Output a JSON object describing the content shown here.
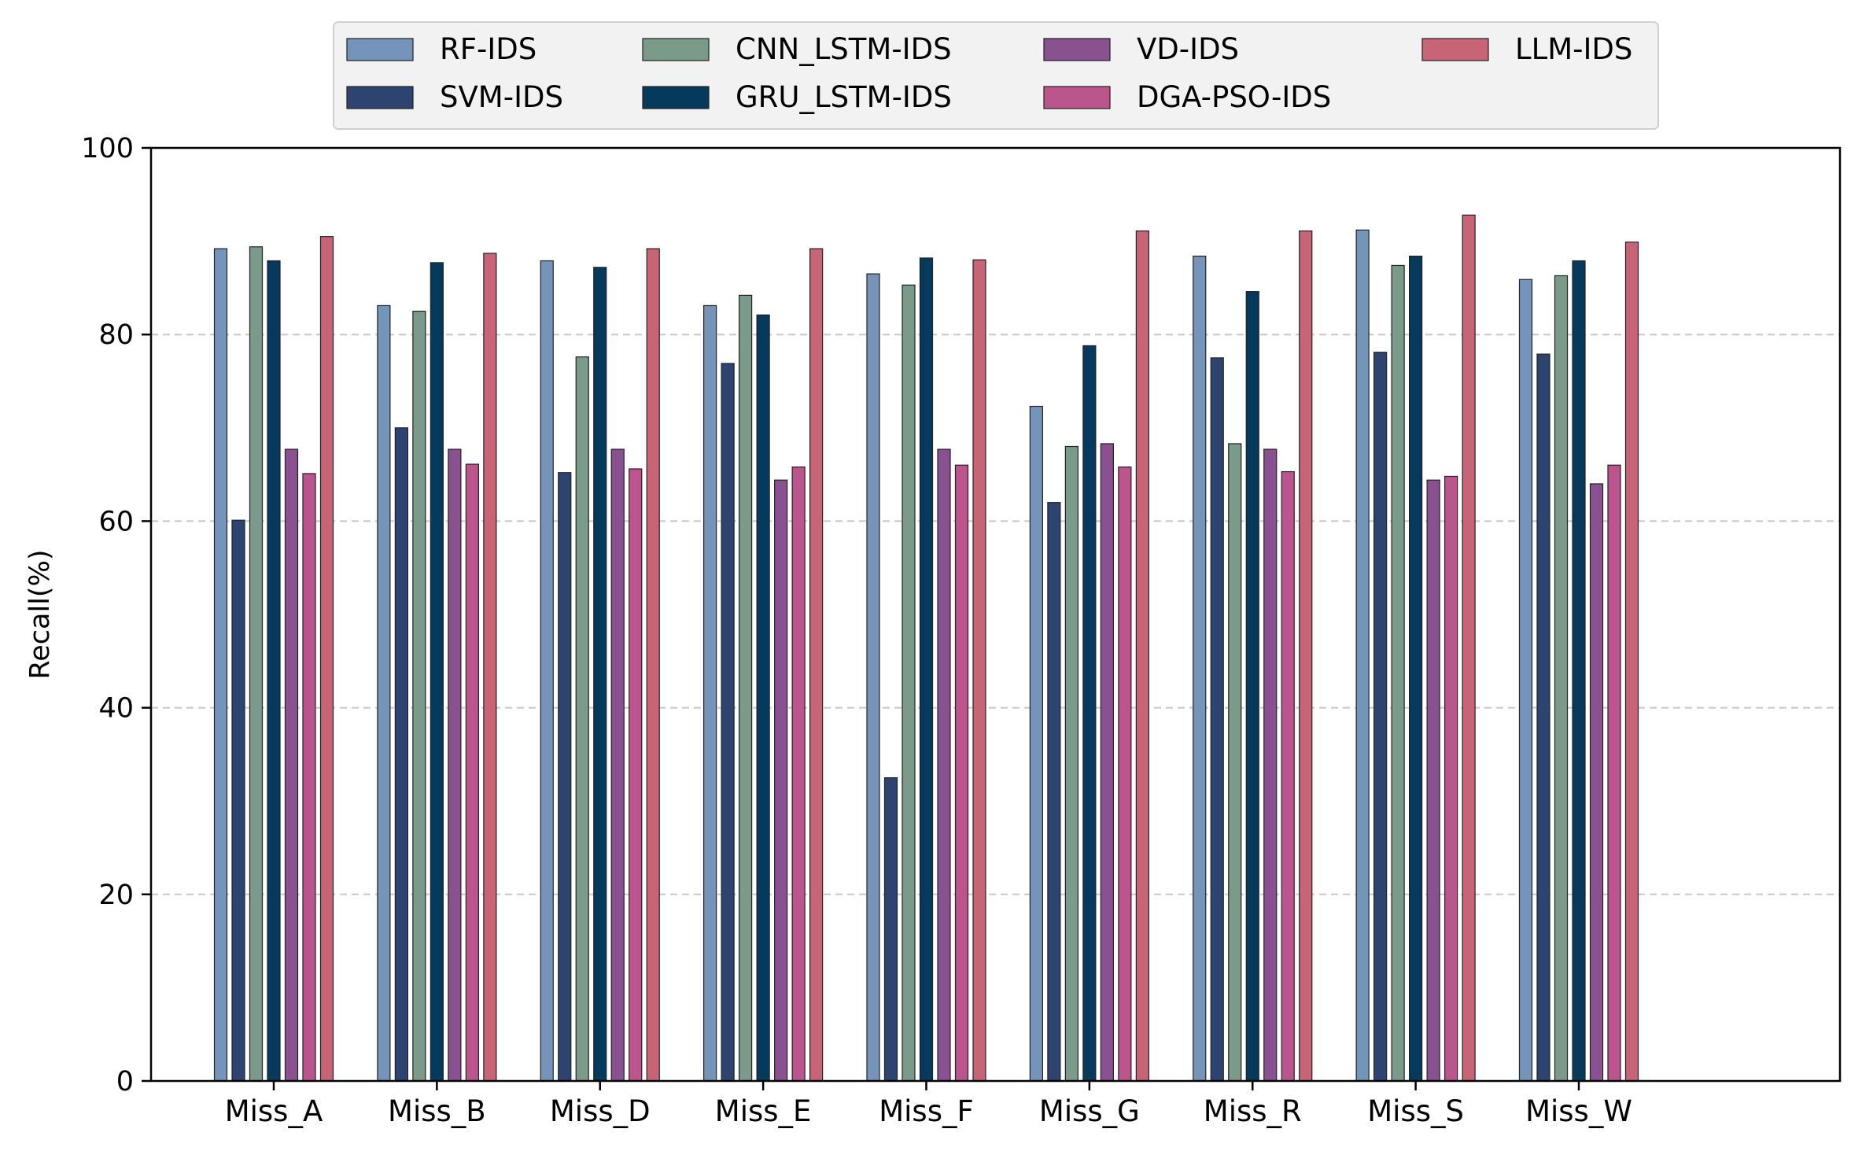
{
  "chart_data": {
    "type": "bar",
    "title": "",
    "xlabel": "",
    "ylabel": "Recall(%)",
    "ylim": [
      0,
      100
    ],
    "yticks": [
      0,
      20,
      40,
      60,
      80,
      100
    ],
    "grid": "y-dashed",
    "legend_position": "top-center",
    "categories": [
      "Miss_A",
      "Miss_B",
      "Miss_D",
      "Miss_E",
      "Miss_F",
      "Miss_G",
      "Miss_R",
      "Miss_S",
      "Miss_W"
    ],
    "series": [
      {
        "name": "RF-IDS",
        "color": "#7594b9",
        "values": [
          89.2,
          83.1,
          87.9,
          83.1,
          86.5,
          72.3,
          88.4,
          91.2,
          85.9
        ]
      },
      {
        "name": "SVM-IDS",
        "color": "#2e4470",
        "values": [
          60.1,
          70.0,
          65.2,
          76.9,
          32.5,
          62.0,
          77.5,
          78.1,
          77.9
        ]
      },
      {
        "name": "CNN_LSTM-IDS",
        "color": "#7a9a8a",
        "values": [
          89.4,
          82.5,
          77.6,
          84.2,
          85.3,
          68.0,
          68.3,
          87.4,
          86.3
        ]
      },
      {
        "name": "GRU_LSTM-IDS",
        "color": "#063a5c",
        "values": [
          87.9,
          87.7,
          87.2,
          82.1,
          88.2,
          78.8,
          84.6,
          88.4,
          87.9
        ]
      },
      {
        "name": "VD-IDS",
        "color": "#8a5190",
        "values": [
          67.7,
          67.7,
          67.7,
          64.4,
          67.7,
          68.3,
          67.7,
          64.4,
          64.0
        ]
      },
      {
        "name": "DGA-PSO-IDS",
        "color": "#bc558d",
        "values": [
          65.1,
          66.1,
          65.6,
          65.8,
          66.0,
          65.8,
          65.3,
          64.8,
          66.0
        ]
      },
      {
        "name": "LLM-IDS",
        "color": "#c76577",
        "values": [
          90.5,
          88.7,
          89.2,
          89.2,
          88.0,
          91.1,
          91.1,
          92.8,
          89.9
        ]
      }
    ]
  }
}
